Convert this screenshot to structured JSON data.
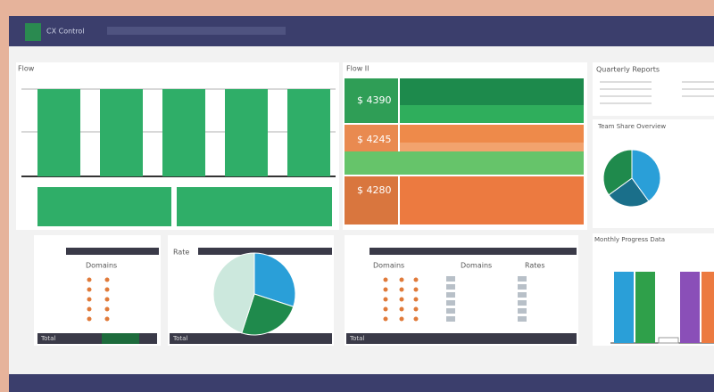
{
  "header": {
    "title": "CX Control"
  },
  "top_left": {
    "title": "Flow",
    "bars": [
      98,
      98,
      98,
      98,
      98
    ],
    "lower_bars": [
      44,
      44
    ]
  },
  "top_middle": {
    "title": "Flow II",
    "tiles": [
      "$ 4390",
      "$ 4245",
      "$ 4280"
    ]
  },
  "top_right": {
    "title": "Quarterly Reports",
    "pie_title": "Team Share Overview",
    "pie": [
      40,
      25,
      35
    ]
  },
  "bottom": {
    "panel1": {
      "header": "Domains",
      "footer": "Total"
    },
    "panel2": {
      "header": "Rate",
      "footer": "Total",
      "pie": [
        30,
        25,
        45
      ]
    },
    "panel3": {
      "headers": [
        "Domains",
        "Domains",
        "Rates"
      ],
      "footer": "Total"
    },
    "panel4": {
      "title": "Monthly Progress Data",
      "bars": [
        80,
        80,
        6,
        80,
        80
      ]
    }
  }
}
